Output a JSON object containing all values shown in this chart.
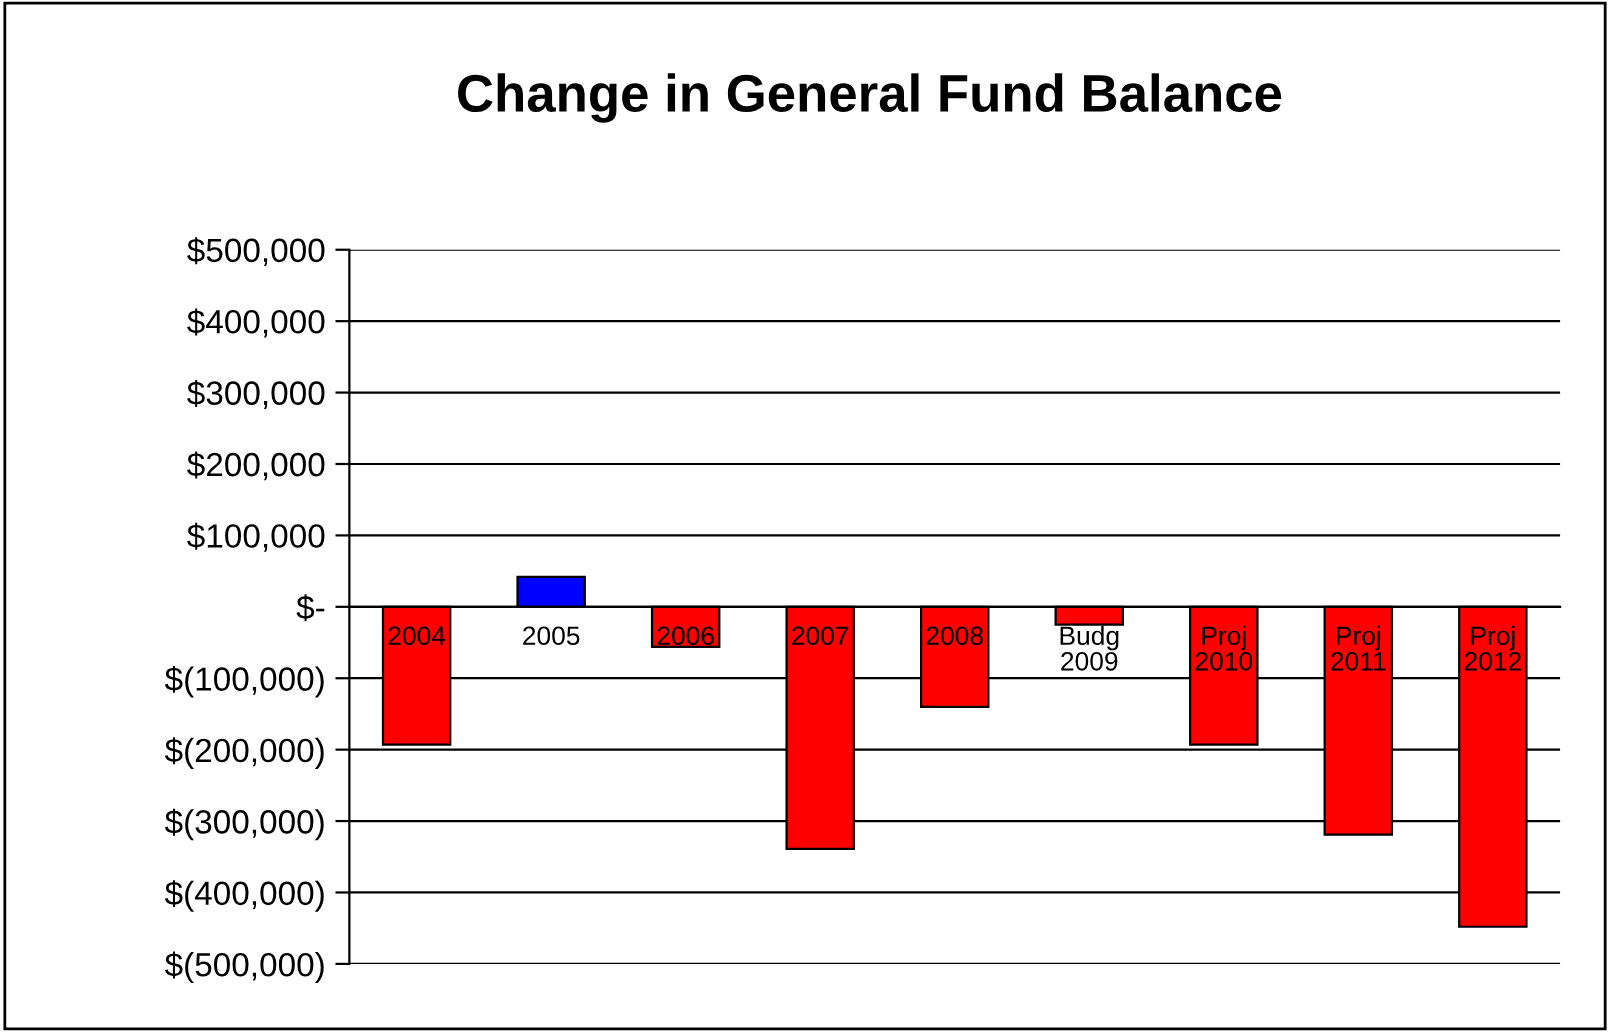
{
  "chart_data": {
    "type": "bar",
    "title": "Change in General Fund Balance",
    "categories": [
      "2004",
      "2005",
      "2006",
      "2007",
      "2008",
      "Budg\n2009",
      "Proj\n2010",
      "Proj\n2011",
      "Proj\n2012"
    ],
    "values": [
      -193000,
      42000,
      -56000,
      -339000,
      -140000,
      -25000,
      -193000,
      -319000,
      -448000
    ],
    "colors": [
      "#ff0000",
      "#0000ff",
      "#ff0000",
      "#ff0000",
      "#ff0000",
      "#ff0000",
      "#ff0000",
      "#ff0000",
      "#ff0000"
    ],
    "ylim": [
      -500000,
      500000
    ],
    "yticks": [
      {
        "value": 500000,
        "label": "$500,000"
      },
      {
        "value": 400000,
        "label": "$400,000"
      },
      {
        "value": 300000,
        "label": "$300,000"
      },
      {
        "value": 200000,
        "label": "$200,000"
      },
      {
        "value": 100000,
        "label": "$100,000"
      },
      {
        "value": 0,
        "label": "$-"
      },
      {
        "value": -100000,
        "label": "$(100,000)"
      },
      {
        "value": -200000,
        "label": "$(200,000)"
      },
      {
        "value": -300000,
        "label": "$(300,000)"
      },
      {
        "value": -400000,
        "label": "$(400,000)"
      },
      {
        "value": -500000,
        "label": "$(500,000)"
      }
    ],
    "grid": "y",
    "legend": false
  }
}
